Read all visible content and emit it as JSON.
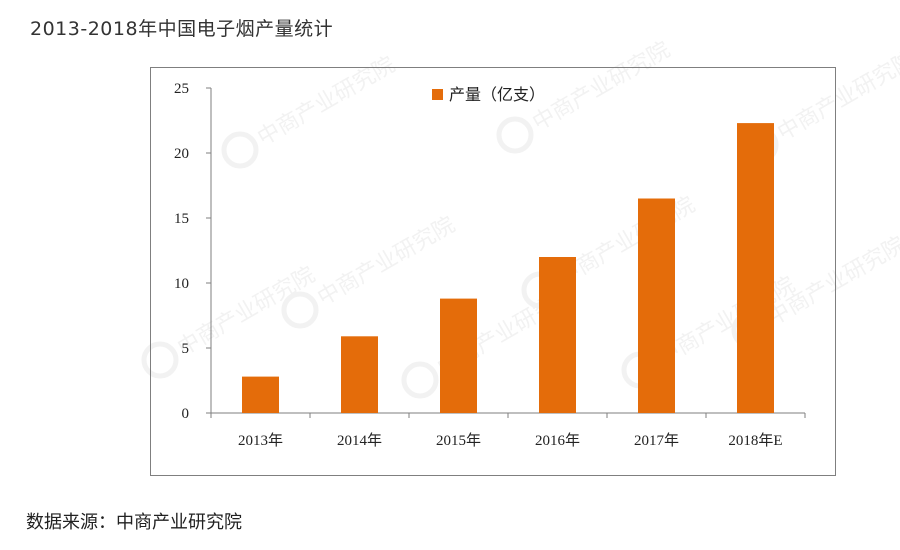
{
  "title": "2013-2018年中国电子烟产量统计",
  "source": "数据来源：中商产业研究院",
  "watermark": "中商产业研究院",
  "colors": {
    "bar": "#E46C0A",
    "axis": "#7f7f7f",
    "frame": "#7f7f7f"
  },
  "chart_data": {
    "type": "bar",
    "categories": [
      "2013年",
      "2014年",
      "2015年",
      "2016年",
      "2017年",
      "2018年E"
    ],
    "series": [
      {
        "name": "产量（亿支）",
        "values": [
          2.8,
          5.9,
          8.8,
          12.0,
          16.5,
          22.3
        ]
      }
    ],
    "ylim": [
      0,
      25
    ],
    "yticks": [
      0,
      5,
      10,
      15,
      20,
      25
    ],
    "legend_position": "top-center",
    "grid": false
  }
}
